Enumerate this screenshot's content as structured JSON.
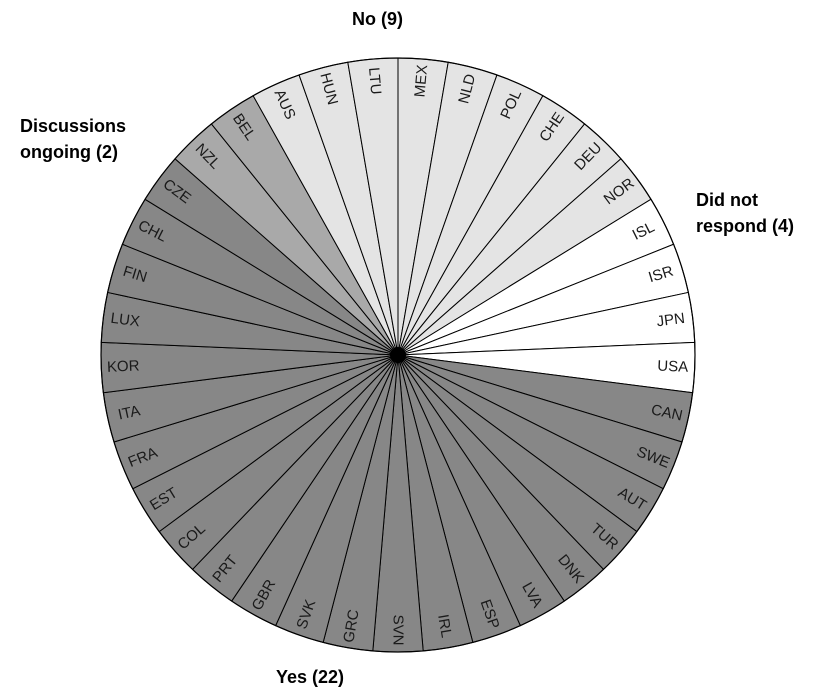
{
  "chart_data": {
    "type": "pie",
    "groups": [
      {
        "key": "no",
        "label": "No (9)",
        "color": "#e4e4e4",
        "countries": [
          "MEX",
          "LTU",
          "HUN",
          "AUS",
          "NLD",
          "POL",
          "CHE",
          "DEU",
          "NOR"
        ]
      },
      {
        "key": "dnr",
        "label": "Did not\nrespond (4)",
        "color": "#ffffff",
        "countries": [
          "ISL",
          "ISR",
          "JPN",
          "USA"
        ]
      },
      {
        "key": "yes",
        "label": "Yes (22)",
        "color": "#878787",
        "countries": [
          "CAN",
          "SWE",
          "AUT",
          "TUR",
          "DNK",
          "LVA",
          "ESP",
          "IRL",
          "SVN",
          "GRC",
          "SVK",
          "GBR",
          "PRT",
          "COL",
          "EST",
          "FRA",
          "ITA",
          "KOR",
          "LUX",
          "FIN",
          "CHL",
          "CZE"
        ]
      },
      {
        "key": "disc",
        "label": "Discussions\nongoing (2)",
        "color": "#a9a9a9",
        "countries": [
          "NZL",
          "BEL"
        ]
      }
    ],
    "slices": [
      "MEX",
      "NLD",
      "POL",
      "CHE",
      "DEU",
      "NOR",
      "ISL",
      "ISR",
      "JPN",
      "USA",
      "CAN",
      "SWE",
      "AUT",
      "TUR",
      "DNK",
      "LVA",
      "ESP",
      "IRL",
      "SVN",
      "GRC",
      "SVK",
      "GBR",
      "PRT",
      "COL",
      "EST",
      "FRA",
      "ITA",
      "KOR",
      "LUX",
      "FIN",
      "CHL",
      "CZE",
      "NZL",
      "BEL",
      "AUS",
      "HUN",
      "LTU"
    ],
    "values": "each country = 1 equal slice (37 total)"
  }
}
